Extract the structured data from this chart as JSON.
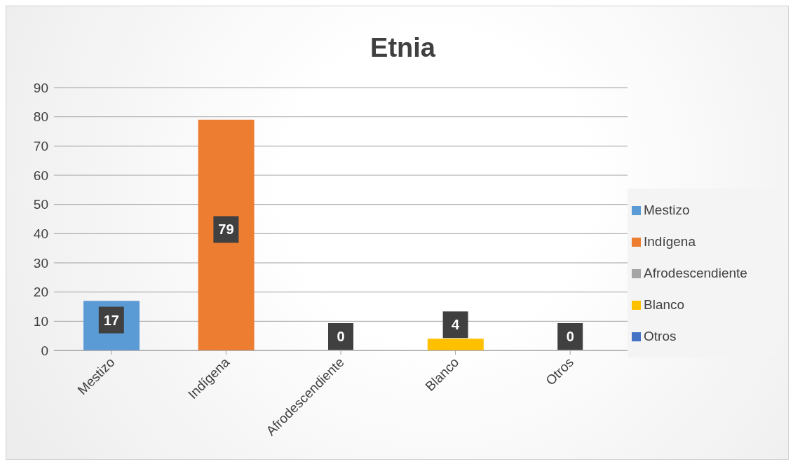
{
  "chart_data": {
    "type": "bar",
    "title": "Etnia",
    "stacked": true,
    "categories": [
      "Mestizo",
      "Indígena",
      "Afrodescendiente",
      "Blanco",
      "Otros"
    ],
    "series": [
      {
        "name": "Mestizo",
        "color": "#5b9bd5",
        "values": [
          17,
          null,
          null,
          null,
          null
        ]
      },
      {
        "name": "Indígena",
        "color": "#ed7d31",
        "values": [
          null,
          79,
          null,
          null,
          null
        ]
      },
      {
        "name": "Afrodescendiente",
        "color": "#a5a5a5",
        "values": [
          null,
          null,
          0,
          null,
          null
        ]
      },
      {
        "name": "Blanco",
        "color": "#ffc000",
        "values": [
          null,
          null,
          null,
          4,
          null
        ]
      },
      {
        "name": "Otros",
        "color": "#4472c4",
        "values": [
          null,
          null,
          null,
          null,
          0
        ]
      }
    ],
    "ylim": [
      0,
      90
    ],
    "yticks": [
      0,
      10,
      20,
      30,
      40,
      50,
      60,
      70,
      80,
      90
    ],
    "grid": "y",
    "legend": "right",
    "data_labels": true
  }
}
